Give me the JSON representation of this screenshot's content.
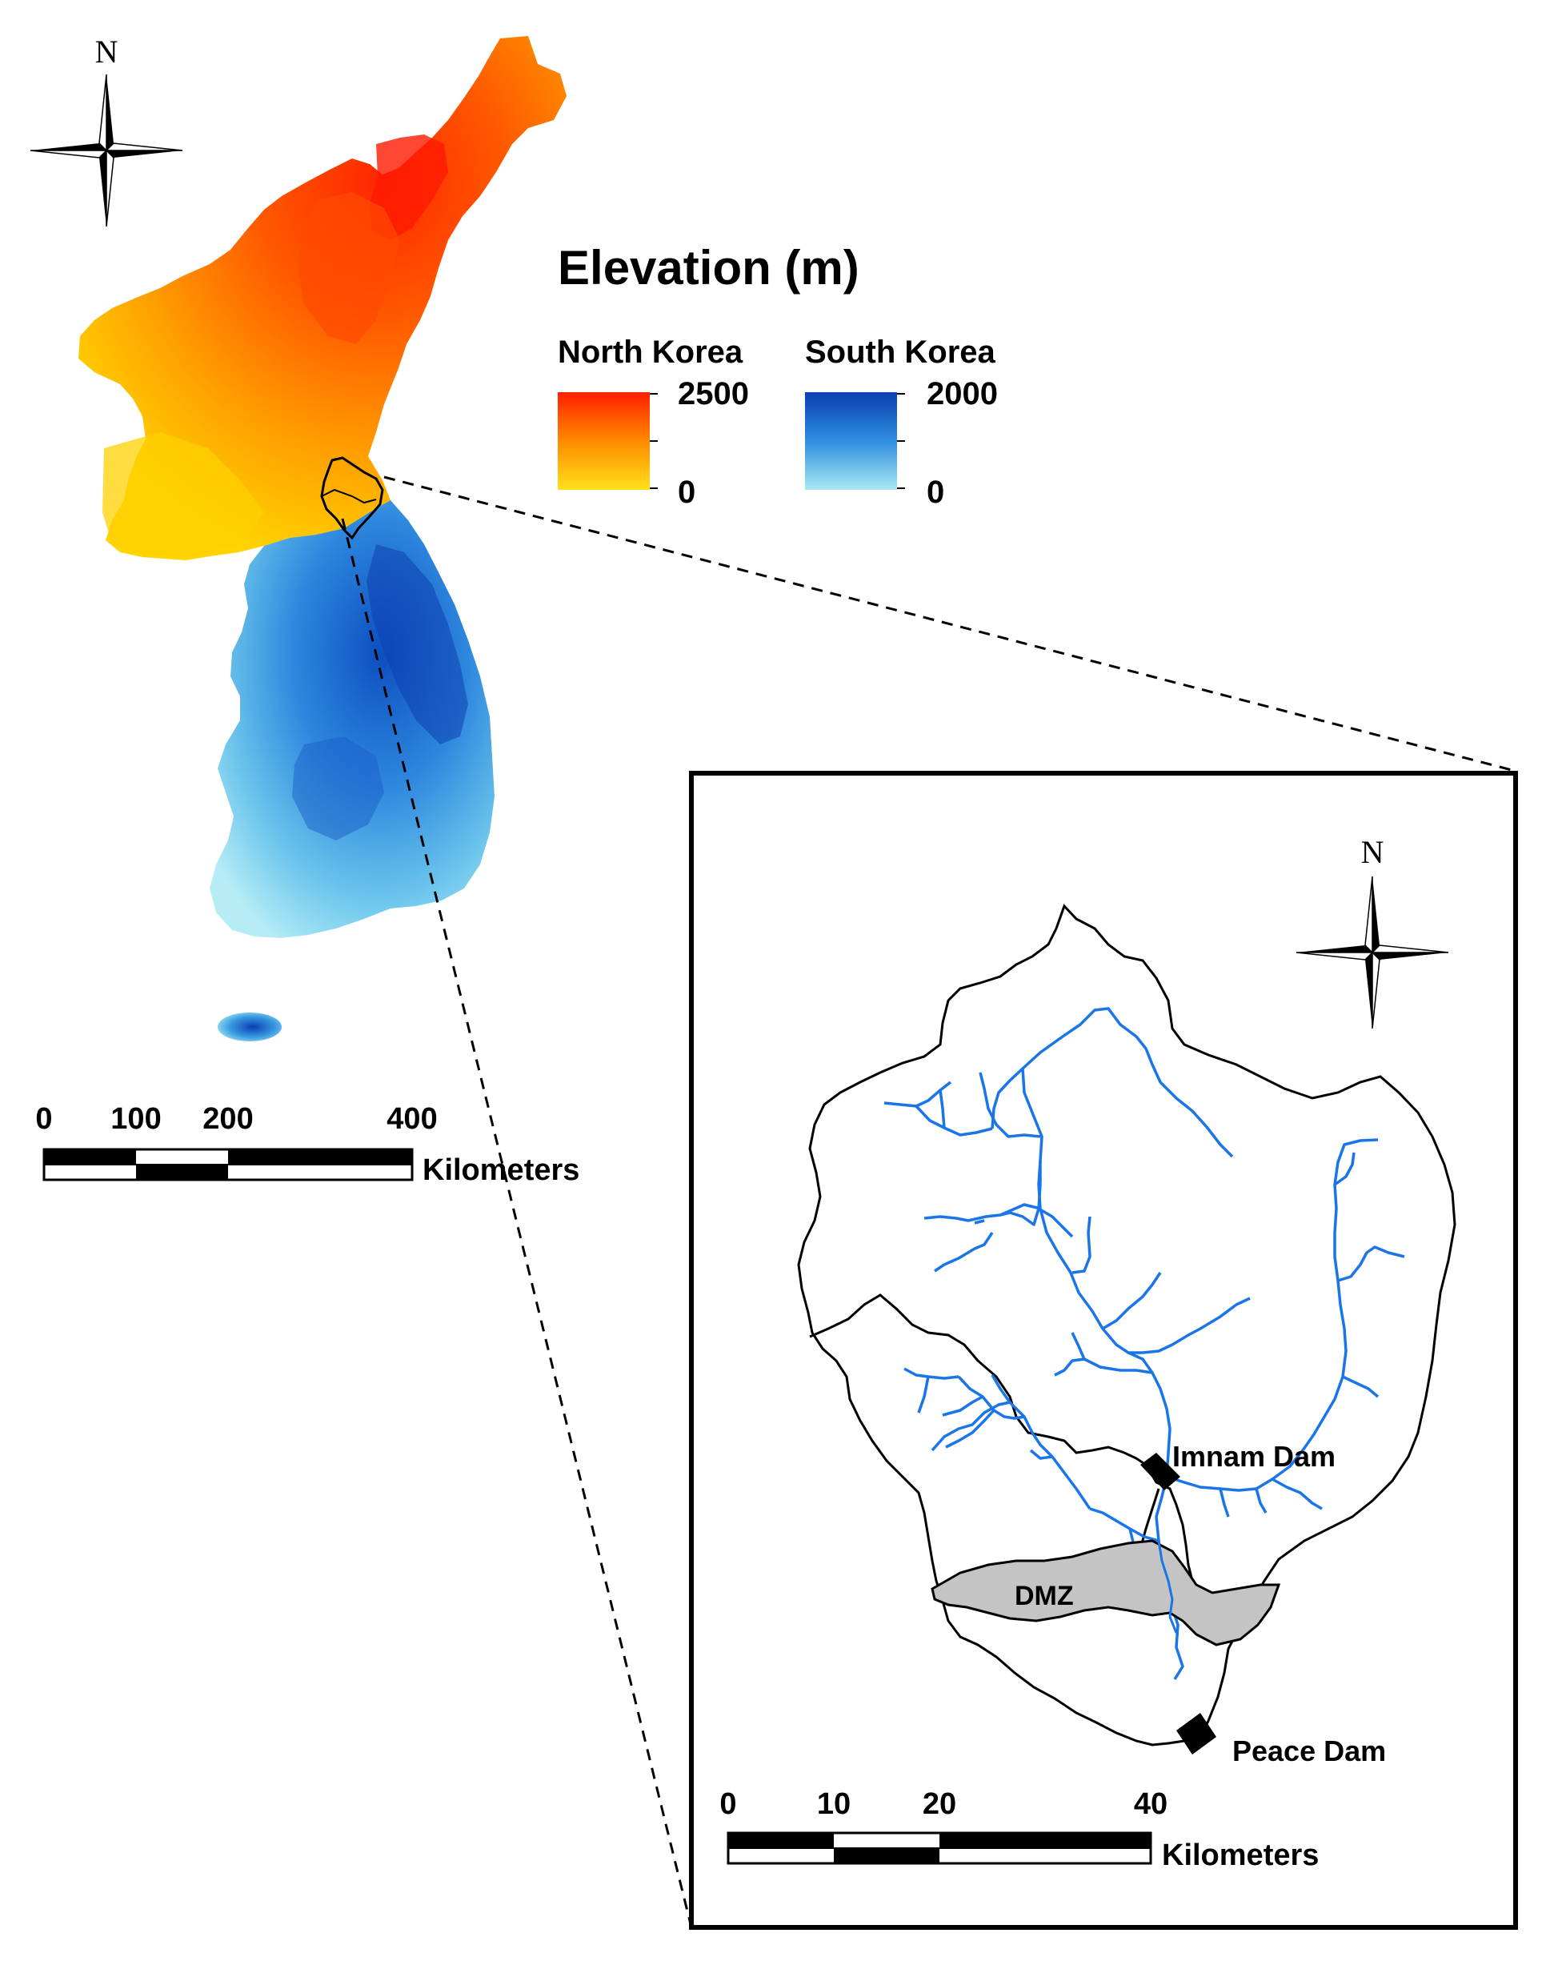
{
  "legend": {
    "title": "Elevation (m)",
    "north": {
      "name": "North Korea",
      "max": "2500",
      "min": "0",
      "color_low": "#ffe11a",
      "color_high": "#ff1f00"
    },
    "south": {
      "name": "South Korea",
      "max": "2000",
      "min": "0",
      "color_low": "#a8e8f2",
      "color_high": "#0a3fb0"
    }
  },
  "main_map": {
    "north_label": "N",
    "scale": {
      "ticks": [
        "0",
        "100",
        "200",
        "400"
      ],
      "unit": "Kilometers"
    }
  },
  "inset": {
    "north_label": "N",
    "labels": {
      "imnam_dam": "Imnam Dam",
      "dmz": "DMZ",
      "peace_dam": "Peace Dam"
    },
    "scale": {
      "ticks": [
        "0",
        "10",
        "20",
        "40"
      ],
      "unit": "Kilometers"
    },
    "colors": {
      "river": "#1a75e8",
      "dmz_fill": "#c4c4c4",
      "dam": "#000000"
    }
  }
}
